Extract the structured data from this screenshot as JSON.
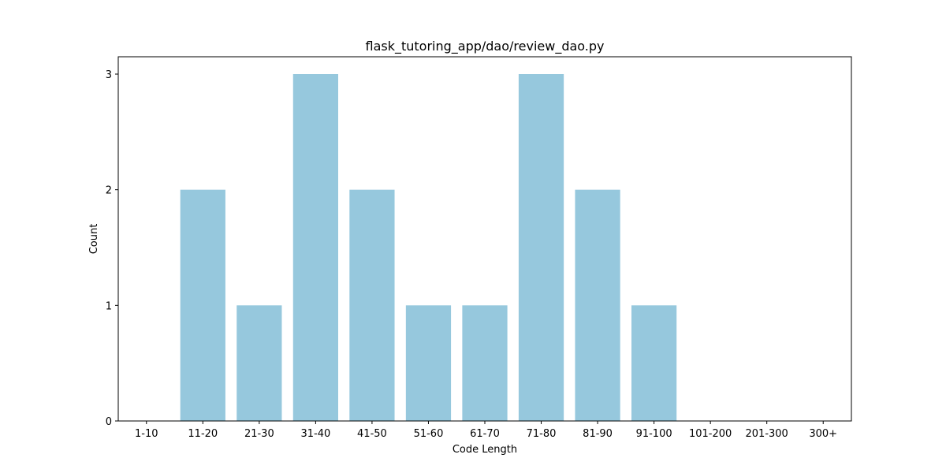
{
  "chart_data": {
    "type": "bar",
    "title": "flask_tutoring_app/dao/review_dao.py",
    "xlabel": "Code Length",
    "ylabel": "Count",
    "categories": [
      "1-10",
      "11-20",
      "21-30",
      "31-40",
      "41-50",
      "51-60",
      "61-70",
      "71-80",
      "81-90",
      "91-100",
      "101-200",
      "201-300",
      "300+"
    ],
    "values": [
      0,
      2,
      1,
      3,
      2,
      1,
      1,
      3,
      2,
      1,
      0,
      0,
      0
    ],
    "ylim": [
      0,
      3.15
    ],
    "yticks": [
      0,
      1,
      2,
      3
    ],
    "bar_color": "#96c8dd",
    "grid": false,
    "legend": "none"
  }
}
